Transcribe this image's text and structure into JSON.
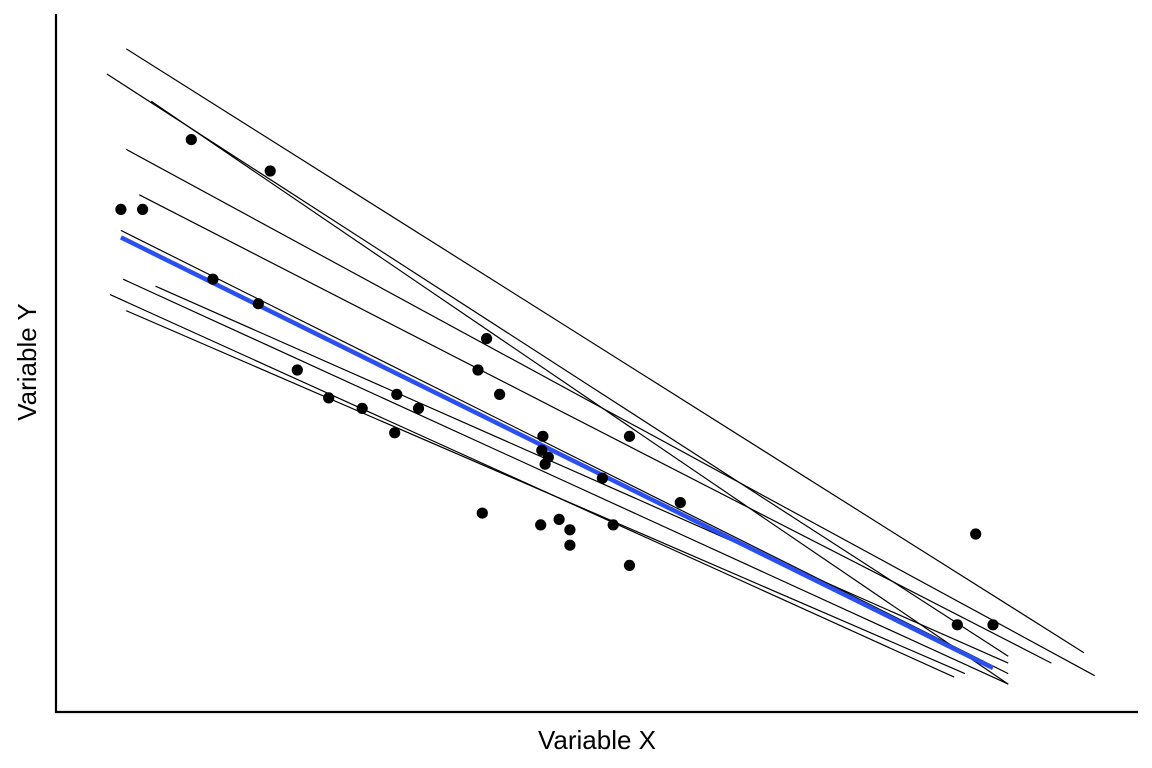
{
  "chart_data": {
    "type": "scatter",
    "xlabel": "Variable X",
    "ylabel": "Variable Y",
    "xlim": [
      0,
      10
    ],
    "ylim": [
      0,
      10
    ],
    "grid": false,
    "legend": "none",
    "points": [
      [
        0.6,
        7.2
      ],
      [
        0.8,
        7.2
      ],
      [
        1.25,
        8.2
      ],
      [
        1.45,
        6.2
      ],
      [
        1.87,
        5.85
      ],
      [
        1.98,
        7.75
      ],
      [
        2.23,
        4.9
      ],
      [
        2.52,
        4.5
      ],
      [
        2.83,
        4.35
      ],
      [
        3.15,
        4.55
      ],
      [
        3.13,
        4.0
      ],
      [
        3.35,
        4.35
      ],
      [
        3.9,
        4.9
      ],
      [
        3.98,
        5.35
      ],
      [
        3.94,
        2.85
      ],
      [
        4.1,
        4.55
      ],
      [
        4.5,
        3.95
      ],
      [
        4.49,
        3.75
      ],
      [
        4.52,
        3.55
      ],
      [
        4.55,
        3.65
      ],
      [
        4.48,
        2.68
      ],
      [
        4.65,
        2.76
      ],
      [
        4.75,
        2.61
      ],
      [
        4.75,
        2.39
      ],
      [
        5.05,
        3.35
      ],
      [
        5.15,
        2.68
      ],
      [
        5.3,
        3.95
      ],
      [
        5.3,
        2.1
      ],
      [
        5.77,
        3.0
      ],
      [
        8.33,
        1.25
      ],
      [
        8.5,
        2.55
      ],
      [
        8.66,
        1.25
      ]
    ],
    "fit_line": {
      "x": [
        0.6,
        8.66
      ],
      "y": [
        6.8,
        0.63
      ],
      "color": "#2c4ff0"
    },
    "bootstrap_lines": [
      {
        "x": [
          0.65,
          9.5
        ],
        "y": [
          9.5,
          0.85
        ]
      },
      {
        "x": [
          0.47,
          8.8
        ],
        "y": [
          9.14,
          0.8
        ]
      },
      {
        "x": [
          0.88,
          8.8
        ],
        "y": [
          8.75,
          0.4
        ]
      },
      {
        "x": [
          0.65,
          9.6
        ],
        "y": [
          8.06,
          0.52
        ]
      },
      {
        "x": [
          0.77,
          9.2
        ],
        "y": [
          7.41,
          0.7
        ]
      },
      {
        "x": [
          0.6,
          8.8
        ],
        "y": [
          6.9,
          0.55
        ]
      },
      {
        "x": [
          0.62,
          8.8
        ],
        "y": [
          6.2,
          0.4
        ]
      },
      {
        "x": [
          0.92,
          8.8
        ],
        "y": [
          6.1,
          0.7
        ]
      },
      {
        "x": [
          0.5,
          8.3
        ],
        "y": [
          5.98,
          0.5
        ]
      },
      {
        "x": [
          0.65,
          8.4
        ],
        "y": [
          5.75,
          0.55
        ]
      }
    ]
  }
}
